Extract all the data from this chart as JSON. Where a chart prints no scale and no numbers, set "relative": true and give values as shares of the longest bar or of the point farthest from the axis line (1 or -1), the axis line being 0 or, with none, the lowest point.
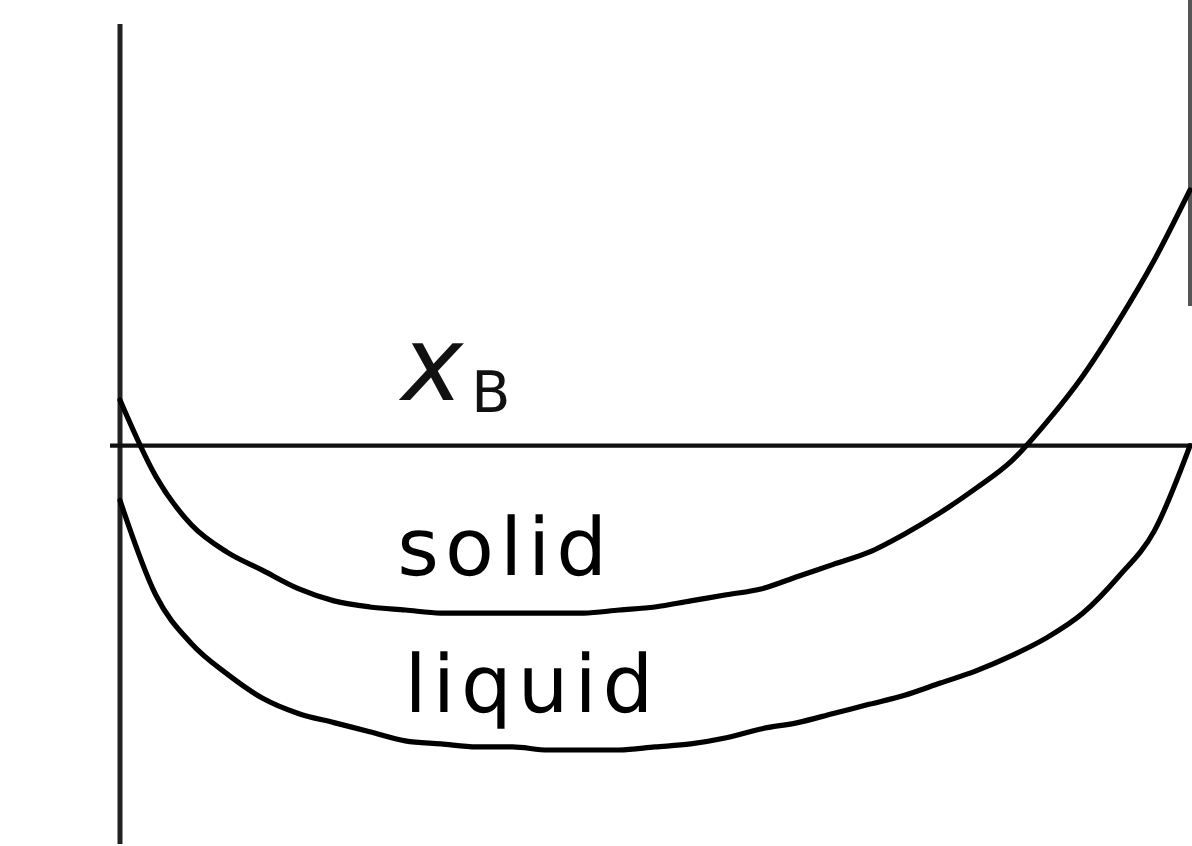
{
  "chart_data": {
    "type": "line",
    "xlabel": "x$_{B}$",
    "relative": true,
    "line_style": "solid",
    "categories": [
      null,
      null,
      null,
      null,
      null,
      null,
      null,
      null,
      null,
      null,
      null,
      null,
      null,
      null,
      null,
      null,
      null,
      null,
      null,
      null,
      null,
      null,
      null,
      null,
      null,
      null,
      null,
      null,
      null,
      null,
      null
    ],
    "series": [
      {
        "name": "solid",
        "color": "#000000",
        "values": [
          0.15,
          -0.1,
          -0.26,
          -0.35,
          -0.41,
          -0.47,
          -0.51,
          -0.53,
          -0.54,
          -0.55,
          -0.55,
          -0.55,
          -0.55,
          -0.55,
          -0.54,
          -0.53,
          -0.51,
          -0.49,
          -0.47,
          -0.43,
          -0.39,
          -0.35,
          -0.29,
          -0.22,
          -0.14,
          -0.05,
          0.08,
          0.23,
          0.41,
          0.61,
          0.84
        ]
      },
      {
        "name": "liquid",
        "color": "#000000",
        "values": [
          -0.18,
          -0.49,
          -0.65,
          -0.75,
          -0.83,
          -0.88,
          -0.91,
          -0.94,
          -0.97,
          -0.98,
          -0.99,
          -0.99,
          -1,
          -1,
          -1,
          -0.99,
          -0.98,
          -0.96,
          -0.93,
          -0.91,
          -0.88,
          -0.85,
          -0.82,
          -0.78,
          -0.74,
          -0.69,
          -0.63,
          -0.55,
          -0.43,
          -0.28,
          0
        ]
      }
    ]
  }
}
